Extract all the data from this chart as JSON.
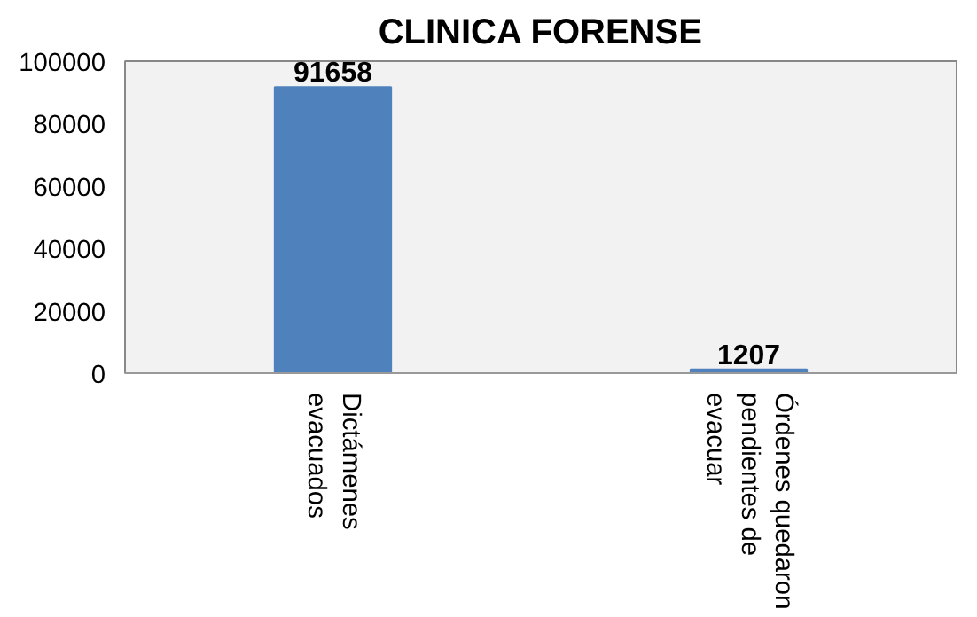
{
  "chart_data": {
    "type": "bar",
    "title": "CLINICA FORENSE",
    "categories": [
      "Dictámenes evacuados",
      "Órdenes quedaron pendientes de evacuar"
    ],
    "values": [
      91658,
      1207
    ],
    "color": "#4f81bd",
    "ylim": [
      0,
      100000
    ],
    "yticks": [
      0,
      20000,
      40000,
      60000,
      80000,
      100000
    ],
    "data_labels": true,
    "grid": false
  }
}
